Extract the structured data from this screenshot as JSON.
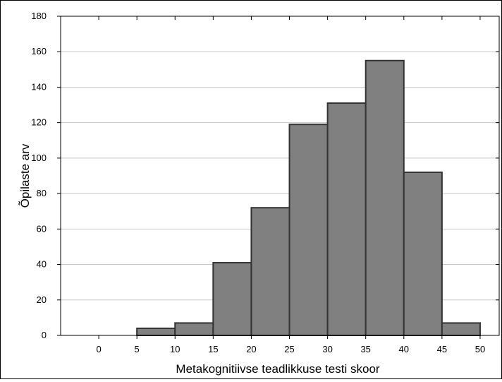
{
  "chart_data": {
    "type": "bar",
    "subtype": "histogram",
    "title": "",
    "xlabel": "Metakognitiivse teadlikkuse testi skoor",
    "ylabel": "Õpilaste arv",
    "xlim": [
      -5,
      52.5
    ],
    "ylim": [
      0,
      180
    ],
    "x_ticks": [
      0,
      5,
      10,
      15,
      20,
      25,
      30,
      35,
      40,
      45,
      50
    ],
    "y_ticks": [
      0,
      20,
      40,
      60,
      80,
      100,
      120,
      140,
      160,
      180
    ],
    "bins": [
      {
        "start": 5,
        "end": 10,
        "value": 4
      },
      {
        "start": 10,
        "end": 15,
        "value": 7
      },
      {
        "start": 15,
        "end": 20,
        "value": 41
      },
      {
        "start": 20,
        "end": 25,
        "value": 72
      },
      {
        "start": 25,
        "end": 30,
        "value": 119
      },
      {
        "start": 30,
        "end": 35,
        "value": 131
      },
      {
        "start": 35,
        "end": 40,
        "value": 155
      },
      {
        "start": 40,
        "end": 45,
        "value": 92
      },
      {
        "start": 45,
        "end": 50,
        "value": 7
      }
    ],
    "bar_color": "#808080",
    "bar_edge_color": "#333333",
    "grid": true,
    "grid_color": "#c8c8c8"
  }
}
